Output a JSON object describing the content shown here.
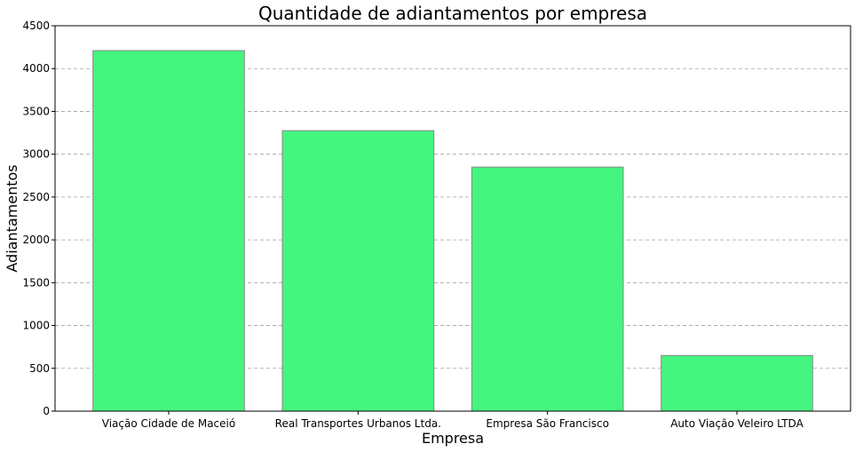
{
  "chart_data": {
    "type": "bar",
    "title": "Quantidade de adiantamentos por empresa",
    "xlabel": "Empresa",
    "ylabel": "Adiantamentos",
    "categories": [
      "Viação Cidade de Maceió",
      "Real Transportes Urbanos Ltda.",
      "Empresa São Francisco",
      "Auto Viação Veleiro LTDA"
    ],
    "values": [
      4210,
      3275,
      2850,
      650
    ],
    "ylim": [
      0,
      4500
    ],
    "yticks": [
      "0",
      "500",
      "1000",
      "1500",
      "2000",
      "2500",
      "3000",
      "3500",
      "4000",
      "4500"
    ],
    "grid": "y-dashed",
    "bar_color": "#44f57f",
    "bar_edge_color": "#888888"
  }
}
